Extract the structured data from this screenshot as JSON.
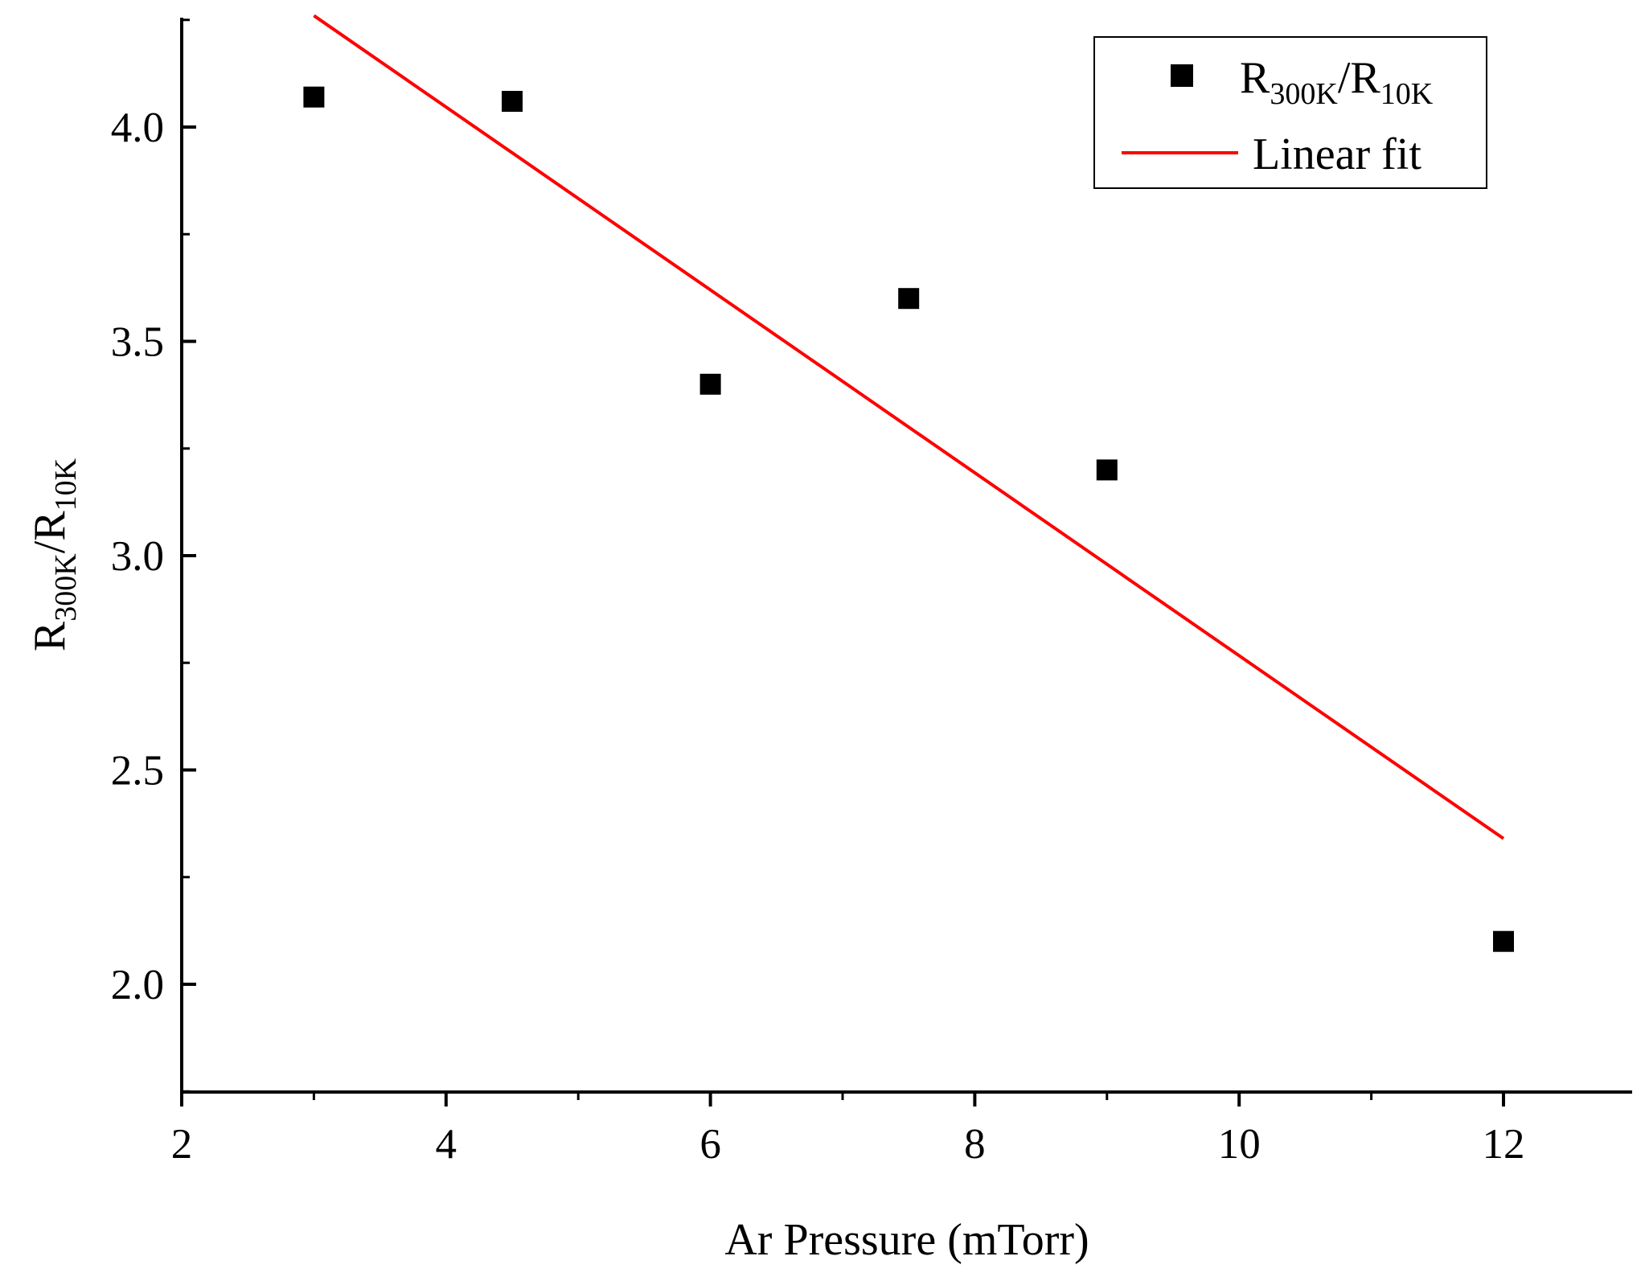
{
  "chart_data": {
    "type": "scatter",
    "title": "",
    "xlabel": "Ar Pressure (mTorr)",
    "ylabel": {
      "main": "R",
      "sub1": "300K",
      "sep": "/R",
      "sub2": "10K"
    },
    "xlim": [
      2,
      13
    ],
    "ylim": [
      1.75,
      4.25
    ],
    "xticks": [
      2,
      4,
      6,
      8,
      10,
      12
    ],
    "xtick_labels": [
      "2",
      "4",
      "6",
      "8",
      "10",
      "12"
    ],
    "yticks": [
      2.0,
      2.5,
      3.0,
      3.5,
      4.0
    ],
    "ytick_labels": [
      "2.0",
      "2.5",
      "3.0",
      "3.5",
      "4.0"
    ],
    "grid": false,
    "legend_position": "top-right",
    "series": [
      {
        "name": "R300K/R10K",
        "legend": {
          "main": "R",
          "sub1": "300K",
          "sep": "/R",
          "sub2": "10K"
        },
        "kind": "scatter",
        "marker": "square",
        "color": "#000000",
        "x": [
          3,
          4.5,
          6,
          7.5,
          9,
          12
        ],
        "y": [
          4.07,
          4.06,
          3.4,
          3.6,
          3.2,
          2.1
        ]
      },
      {
        "name": "Linear fit",
        "kind": "line",
        "color": "#ff0000",
        "x": [
          3,
          12
        ],
        "y": [
          4.26,
          2.34
        ]
      }
    ]
  }
}
